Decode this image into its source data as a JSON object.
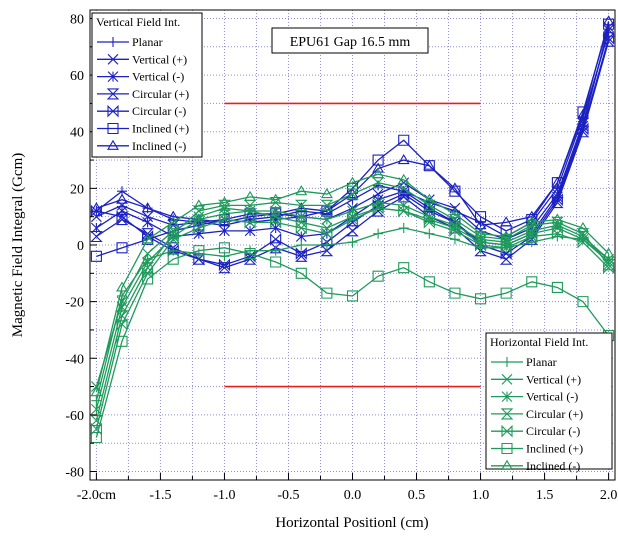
{
  "chart_data": {
    "type": "line",
    "title": "",
    "annotation": "EPU61 Gap 16.5 mm",
    "xlabel": "Horizontal Positionl (cm)",
    "ylabel": "Magnetic Field Integral (Gcm)",
    "xlim": [
      -2.05,
      2.05
    ],
    "ylim": [
      -83,
      83
    ],
    "x_ticks": [
      -2.0,
      -1.5,
      -1.0,
      -0.5,
      0.0,
      0.5,
      1.0,
      1.5,
      2.0
    ],
    "x_tick_labels": [
      "-2.0cm",
      "-1.5",
      "-1.0",
      "-0.5",
      "0.0",
      "0.5",
      "1.0",
      "1.5",
      "2.0"
    ],
    "y_ticks": [
      -80,
      -60,
      -40,
      -20,
      0,
      20,
      40,
      60,
      80
    ],
    "y_tick_labels": [
      "-80",
      "-60",
      "-40",
      "-20",
      "0",
      "20",
      "40",
      "60",
      "80"
    ],
    "grid": true,
    "x": [
      -2.0,
      -1.8,
      -1.6,
      -1.4,
      -1.2,
      -1.0,
      -0.8,
      -0.6,
      -0.4,
      -0.2,
      0.0,
      0.2,
      0.4,
      0.6,
      0.8,
      1.0,
      1.2,
      1.4,
      1.6,
      1.8,
      2.0
    ],
    "reference_lines": [
      {
        "y": 50,
        "x_range": [
          -1.0,
          1.0
        ],
        "color": "#e8201c"
      },
      {
        "y": -50,
        "x_range": [
          -1.0,
          1.0
        ],
        "color": "#e8201c"
      }
    ],
    "legends": [
      {
        "title": "Vertical Field Int.",
        "placement": "top-left",
        "color": "#1c21c2"
      },
      {
        "title": "Horizontal Field Int.",
        "placement": "bottom-right",
        "color": "#1e9a5a"
      }
    ],
    "series": [
      {
        "name": "Planar",
        "group": "Vertical Field Int.",
        "color": "#1c21c2",
        "marker": "plus",
        "values": [
          12,
          19,
          13,
          9,
          8,
          7,
          9,
          10,
          12,
          11,
          16,
          21,
          19,
          15,
          12,
          8,
          3,
          8,
          20,
          45,
          75
        ]
      },
      {
        "name": "Vertical (+)",
        "group": "Vertical Field Int.",
        "color": "#1c21c2",
        "marker": "x",
        "values": [
          10,
          14,
          10,
          7,
          8,
          9,
          8,
          9,
          10,
          9,
          13,
          18,
          22,
          16,
          13,
          5,
          2,
          6,
          18,
          43,
          76
        ]
      },
      {
        "name": "Vertical (-)",
        "group": "Vertical Field Int.",
        "color": "#1c21c2",
        "marker": "star",
        "values": [
          6,
          12,
          8,
          3,
          4,
          5,
          5,
          6,
          3,
          4,
          10,
          16,
          19,
          13,
          8,
          1,
          0,
          4,
          17,
          42,
          77
        ]
      },
      {
        "name": "Circular (+)",
        "group": "Vertical Field Int.",
        "color": "#1c21c2",
        "marker": "hourglass",
        "values": [
          3,
          9,
          4,
          -1,
          -5,
          -8,
          -5,
          -1,
          -4,
          -2,
          5,
          12,
          17,
          10,
          6,
          -2,
          -5,
          2,
          15,
          40,
          72
        ]
      },
      {
        "name": "Circular (-)",
        "group": "Vertical Field Int.",
        "color": "#1c21c2",
        "marker": "bowtie",
        "values": [
          12,
          10,
          3,
          -2,
          -5,
          -7,
          -4,
          2,
          -3,
          1,
          8,
          14,
          18,
          12,
          8,
          0,
          -3,
          3,
          16,
          41,
          73
        ]
      },
      {
        "name": "Inclined (+)",
        "group": "Vertical Field Int.",
        "color": "#1c21c2",
        "marker": "square",
        "values": [
          -4,
          -1,
          2,
          5,
          7,
          9,
          11,
          11,
          10,
          12,
          20,
          30,
          37,
          28,
          19,
          10,
          5,
          9,
          22,
          47,
          78
        ]
      },
      {
        "name": "Inclined (-)",
        "group": "Vertical Field Int.",
        "color": "#1c21c2",
        "marker": "triangle",
        "values": [
          13,
          16,
          13,
          10,
          9,
          8,
          10,
          11,
          13,
          12,
          18,
          27,
          30,
          28,
          20,
          7,
          8,
          10,
          22,
          46,
          79
        ]
      },
      {
        "name": "Planar",
        "group": "Horizontal Field Int.",
        "color": "#1e9a5a",
        "marker": "plus",
        "values": [
          -55,
          -18,
          -5,
          -2,
          -3,
          -4,
          -2,
          -2,
          0,
          0,
          1,
          4,
          6,
          4,
          2,
          -1,
          -1,
          1,
          3,
          2,
          -5
        ]
      },
      {
        "name": "Vertical (+)",
        "group": "Horizontal Field Int.",
        "color": "#1e9a5a",
        "marker": "x",
        "values": [
          -50,
          -20,
          -3,
          5,
          10,
          13,
          12,
          10,
          8,
          6,
          10,
          13,
          12,
          9,
          6,
          1,
          0,
          4,
          6,
          2,
          -6
        ]
      },
      {
        "name": "Vertical (-)",
        "group": "Horizontal Field Int.",
        "color": "#1e9a5a",
        "marker": "star",
        "values": [
          -58,
          -22,
          -6,
          3,
          9,
          11,
          12,
          12,
          10,
          9,
          12,
          15,
          14,
          10,
          7,
          2,
          1,
          5,
          7,
          3,
          -5
        ]
      },
      {
        "name": "Circular (+)",
        "group": "Horizontal Field Int.",
        "color": "#1e9a5a",
        "marker": "hourglass",
        "values": [
          -62,
          -25,
          -8,
          4,
          12,
          14,
          14,
          15,
          14,
          14,
          18,
          22,
          20,
          14,
          9,
          3,
          2,
          7,
          8,
          4,
          -7
        ]
      },
      {
        "name": "Circular (-)",
        "group": "Horizontal Field Int.",
        "color": "#1e9a5a",
        "marker": "bowtie",
        "values": [
          -65,
          -28,
          -10,
          2,
          6,
          9,
          8,
          8,
          6,
          4,
          9,
          13,
          12,
          8,
          5,
          0,
          -1,
          3,
          4,
          1,
          -8
        ]
      },
      {
        "name": "Inclined (+)",
        "group": "Horizontal Field Int.",
        "color": "#1e9a5a",
        "marker": "square",
        "values": [
          -68,
          -34,
          -12,
          -5,
          -2,
          -1,
          -3,
          -6,
          -10,
          -17,
          -18,
          -11,
          -8,
          -13,
          -17,
          -19,
          -17,
          -13,
          -15,
          -20,
          -32
        ]
      },
      {
        "name": "Inclined (-)",
        "group": "Horizontal Field Int.",
        "color": "#1e9a5a",
        "marker": "triangle",
        "values": [
          -52,
          -15,
          2,
          8,
          14,
          15,
          17,
          16,
          19,
          18,
          22,
          25,
          23,
          16,
          11,
          4,
          3,
          8,
          9,
          6,
          -3
        ]
      }
    ]
  }
}
